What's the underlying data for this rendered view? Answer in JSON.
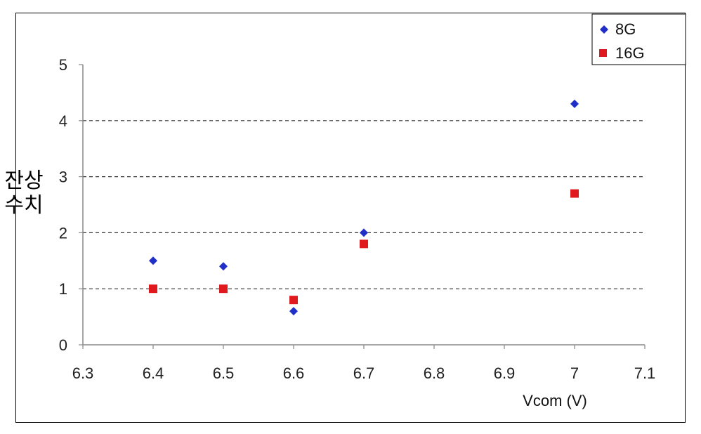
{
  "chart_data": {
    "type": "scatter",
    "xlabel": "Vcom (V)",
    "ylabel_lines": [
      "잔상",
      "수치"
    ],
    "xlim": [
      6.3,
      7.1
    ],
    "ylim": [
      0,
      5
    ],
    "x_ticks": [
      "6.3",
      "6.4",
      "6.5",
      "6.6",
      "6.7",
      "6.8",
      "6.9",
      "7",
      "7.1"
    ],
    "y_ticks": [
      "0",
      "1",
      "2",
      "3",
      "4",
      "5"
    ],
    "grid": "horizontal dashed",
    "legend_position": "top-right",
    "series": [
      {
        "name": "8G",
        "marker": "diamond",
        "color": "#1f2fc8",
        "points": [
          [
            6.4,
            1.5
          ],
          [
            6.5,
            1.4
          ],
          [
            6.6,
            0.6
          ],
          [
            6.7,
            2.0
          ],
          [
            7.0,
            4.3
          ]
        ]
      },
      {
        "name": "16G",
        "marker": "square",
        "color": "#e0191e",
        "points": [
          [
            6.4,
            1.0
          ],
          [
            6.5,
            1.0
          ],
          [
            6.6,
            0.8
          ],
          [
            6.7,
            1.8
          ],
          [
            7.0,
            2.7
          ]
        ]
      }
    ]
  }
}
